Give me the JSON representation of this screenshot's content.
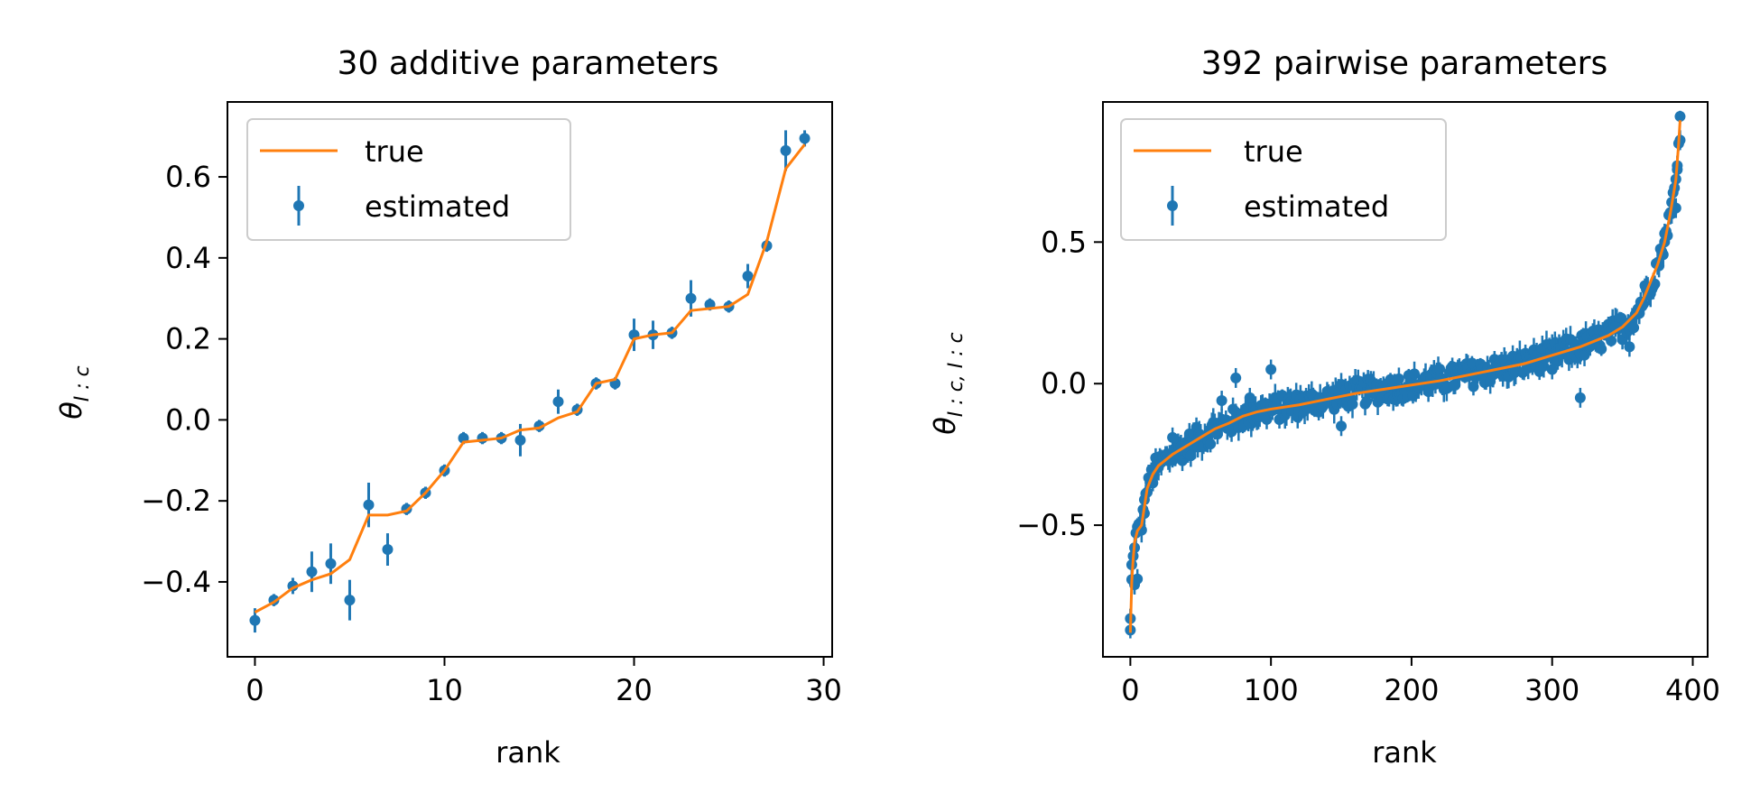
{
  "chart_data": [
    {
      "type": "line",
      "title": "30 additive parameters",
      "xlabel": "rank",
      "ylabel_symbol": "θ",
      "ylabel_subscript": "I : c",
      "xlim": [
        -1.45,
        30.45
      ],
      "ylim": [
        -0.585,
        0.785
      ],
      "xticks": [
        0,
        10,
        20,
        30
      ],
      "yticks": [
        -0.4,
        -0.2,
        0.0,
        0.2,
        0.4,
        0.6
      ],
      "xtick_labels": [
        "0",
        "10",
        "20",
        "30"
      ],
      "ytick_labels": [
        "−0.4",
        "−0.2",
        "0.0",
        "0.2",
        "0.4",
        "0.6"
      ],
      "grid": false,
      "legend_position": "upper left",
      "legend": [
        {
          "label": "true",
          "marker": "line",
          "color": "#ff7f0e"
        },
        {
          "label": "estimated",
          "marker": "errorbar",
          "color": "#1f77b4"
        }
      ],
      "series": [
        {
          "name": "true",
          "style": "line",
          "color": "#ff7f0e",
          "x": [
            0,
            1,
            2,
            3,
            4,
            5,
            6,
            7,
            8,
            9,
            10,
            11,
            12,
            13,
            14,
            15,
            16,
            17,
            18,
            19,
            20,
            21,
            22,
            23,
            24,
            25,
            26,
            27,
            28,
            29
          ],
          "y": [
            -0.475,
            -0.45,
            -0.415,
            -0.395,
            -0.38,
            -0.345,
            -0.235,
            -0.235,
            -0.225,
            -0.18,
            -0.125,
            -0.055,
            -0.05,
            -0.045,
            -0.025,
            -0.02,
            0.005,
            0.02,
            0.09,
            0.1,
            0.2,
            0.21,
            0.215,
            0.27,
            0.275,
            0.28,
            0.31,
            0.44,
            0.62,
            0.68
          ]
        },
        {
          "name": "estimated",
          "style": "errorbar",
          "color": "#1f77b4",
          "x": [
            0,
            1,
            2,
            3,
            4,
            5,
            6,
            7,
            8,
            9,
            10,
            11,
            12,
            13,
            14,
            15,
            16,
            17,
            18,
            19,
            20,
            21,
            22,
            23,
            24,
            25,
            26,
            27,
            28,
            29
          ],
          "y": [
            -0.495,
            -0.445,
            -0.41,
            -0.375,
            -0.355,
            -0.445,
            -0.21,
            -0.32,
            -0.22,
            -0.18,
            -0.125,
            -0.045,
            -0.045,
            -0.045,
            -0.05,
            -0.015,
            0.045,
            0.025,
            0.09,
            0.09,
            0.21,
            0.21,
            0.215,
            0.3,
            0.285,
            0.28,
            0.355,
            0.43,
            0.665,
            0.695
          ],
          "err": [
            0.03,
            0.015,
            0.02,
            0.05,
            0.05,
            0.05,
            0.055,
            0.04,
            0.015,
            0.015,
            0.015,
            0.015,
            0.015,
            0.015,
            0.04,
            0.015,
            0.03,
            0.015,
            0.015,
            0.015,
            0.04,
            0.035,
            0.015,
            0.045,
            0.015,
            0.015,
            0.03,
            0.015,
            0.05,
            0.02
          ]
        }
      ]
    },
    {
      "type": "line",
      "title": "392 pairwise parameters",
      "xlabel": "rank",
      "ylabel_symbol": "θ",
      "ylabel_subscript": "I : c, I : c",
      "xlim": [
        -19.5,
        410.6
      ],
      "ylim": [
        -0.965,
        0.995
      ],
      "xticks": [
        0,
        100,
        200,
        300,
        400
      ],
      "yticks": [
        -0.5,
        0.0,
        0.5
      ],
      "xtick_labels": [
        "0",
        "100",
        "200",
        "300",
        "400"
      ],
      "ytick_labels": [
        "−0.5",
        "0.0",
        "0.5"
      ],
      "grid": false,
      "legend_position": "upper left",
      "legend": [
        {
          "label": "true",
          "marker": "line",
          "color": "#ff7f0e"
        },
        {
          "label": "estimated",
          "marker": "errorbar",
          "color": "#1f77b4"
        }
      ],
      "n_points": 392,
      "true_curve": {
        "x": [
          0,
          1,
          2,
          3,
          5,
          8,
          12,
          16,
          20,
          25,
          30,
          40,
          50,
          60,
          70,
          80,
          90,
          100,
          120,
          140,
          160,
          180,
          200,
          220,
          240,
          260,
          280,
          300,
          320,
          340,
          350,
          360,
          365,
          370,
          375,
          380,
          384,
          388,
          390,
          391
        ],
        "y": [
          -0.88,
          -0.7,
          -0.62,
          -0.56,
          -0.52,
          -0.5,
          -0.37,
          -0.32,
          -0.29,
          -0.27,
          -0.25,
          -0.22,
          -0.19,
          -0.16,
          -0.14,
          -0.115,
          -0.1,
          -0.09,
          -0.075,
          -0.055,
          -0.035,
          -0.02,
          -0.005,
          0.01,
          0.03,
          0.05,
          0.07,
          0.1,
          0.13,
          0.17,
          0.2,
          0.25,
          0.3,
          0.36,
          0.42,
          0.5,
          0.6,
          0.72,
          0.85,
          0.93
        ]
      },
      "series": [
        {
          "name": "true",
          "style": "line",
          "color": "#ff7f0e"
        },
        {
          "name": "estimated",
          "style": "errorbar",
          "color": "#1f77b4",
          "highlighted_points": [
            {
              "x": 0,
              "y": -0.83
            },
            {
              "x": 1,
              "y": -0.64
            },
            {
              "x": 3,
              "y": -0.71
            },
            {
              "x": 5,
              "y": -0.69
            },
            {
              "x": 7,
              "y": -0.5
            },
            {
              "x": 10,
              "y": -0.41
            },
            {
              "x": 30,
              "y": -0.19
            },
            {
              "x": 65,
              "y": -0.06
            },
            {
              "x": 75,
              "y": 0.02
            },
            {
              "x": 85,
              "y": -0.05
            },
            {
              "x": 100,
              "y": 0.05
            },
            {
              "x": 150,
              "y": -0.15
            },
            {
              "x": 300,
              "y": 0.05
            },
            {
              "x": 320,
              "y": -0.05
            },
            {
              "x": 345,
              "y": 0.2
            },
            {
              "x": 355,
              "y": 0.13
            },
            {
              "x": 380,
              "y": 0.53
            },
            {
              "x": 385,
              "y": 0.6
            },
            {
              "x": 388,
              "y": 0.62
            },
            {
              "x": 389,
              "y": 0.77
            },
            {
              "x": 391,
              "y": 0.86
            }
          ]
        }
      ]
    }
  ]
}
